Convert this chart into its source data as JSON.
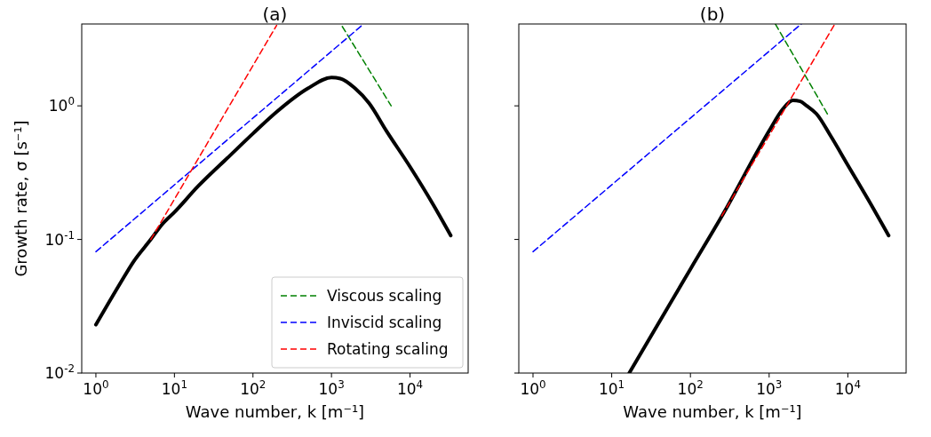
{
  "chart_data": [
    {
      "type": "line",
      "title": "(a)",
      "xlabel": "Wave number, k [m⁻¹]",
      "ylabel": "Growth rate, σ [s⁻¹]",
      "log": "xy",
      "xlim": [
        0.66,
        55000
      ],
      "ylim": [
        0.01,
        4.1
      ],
      "xticks": [
        {
          "value": 1,
          "label": "10$^{0}$"
        },
        {
          "value": 10,
          "label": "10$^{1}$"
        },
        {
          "value": 100,
          "label": "10$^{2}$"
        },
        {
          "value": 1000,
          "label": "10$^{3}$"
        },
        {
          "value": 10000,
          "label": "10$^{4}$"
        }
      ],
      "yticks": [
        {
          "value": 0.01,
          "label": "10$^{-2}$"
        },
        {
          "value": 0.1,
          "label": "10$^{-1}$"
        },
        {
          "value": 1,
          "label": "10$^{0}$"
        }
      ],
      "legend": "bottom right",
      "grid": false,
      "series": [
        {
          "color": "#000000",
          "x": [
            1,
            2,
            3,
            5,
            7,
            10,
            20,
            50,
            100,
            200,
            500,
            1000,
            1300,
            2000,
            3000,
            5000,
            10000,
            20000,
            33000
          ],
          "values": [
            0.023,
            0.046,
            0.068,
            0.1,
            0.13,
            0.16,
            0.25,
            0.42,
            0.62,
            0.9,
            1.35,
            1.63,
            1.6,
            1.35,
            1.05,
            0.65,
            0.35,
            0.18,
            0.107
          ]
        },
        {
          "name": "Viscous scaling",
          "color": "#008000",
          "line_style": "dashed",
          "x": [
            1370,
            5750
          ],
          "values": [
            3.93,
            1.0
          ]
        },
        {
          "name": "Inviscid scaling",
          "color": "#0000ff",
          "line_style": "dashed",
          "x": [
            1,
            2500
          ],
          "values": [
            0.081,
            4.05
          ]
        },
        {
          "name": "Rotating scaling",
          "color": "#ff0000",
          "line_style": "dashed",
          "x": [
            5,
            200
          ],
          "values": [
            0.1,
            4.0
          ]
        }
      ]
    },
    {
      "type": "line",
      "title": "(b)",
      "xlabel": "Wave number, k [m⁻¹]",
      "log": "xy",
      "xlim": [
        0.66,
        55000
      ],
      "ylim": [
        0.01,
        4.1
      ],
      "tick_labels": "x",
      "xticks": [
        {
          "value": 1,
          "label": "10$^{0}$"
        },
        {
          "value": 10,
          "label": "10$^{1}$"
        },
        {
          "value": 100,
          "label": "10$^{2}$"
        },
        {
          "value": 1000,
          "label": "10$^{3}$"
        },
        {
          "value": 10000,
          "label": "10$^{4}$"
        }
      ],
      "yticks": [
        {
          "value": 0.01,
          "label": null
        },
        {
          "value": 0.1,
          "label": null
        },
        {
          "value": 1,
          "label": null
        }
      ],
      "grid": false,
      "series": [
        {
          "color": "#000000",
          "x": [
            16.7,
            50,
            100,
            300,
            700,
            1000,
            1500,
            2000,
            2500,
            3000,
            4000,
            6000,
            10000,
            20000,
            33000
          ],
          "values": [
            0.01,
            0.03,
            0.06,
            0.18,
            0.45,
            0.65,
            0.95,
            1.1,
            1.08,
            1.0,
            0.87,
            0.6,
            0.36,
            0.18,
            0.107
          ]
        },
        {
          "color": "#008000",
          "line_style": "dashed",
          "x": [
            1200,
            5500
          ],
          "values": [
            4.1,
            0.87
          ]
        },
        {
          "color": "#0000ff",
          "line_style": "dashed",
          "x": [
            1,
            2560
          ],
          "values": [
            0.081,
            4.1
          ]
        },
        {
          "color": "#ff0000",
          "line_style": "dashed",
          "x": [
            250,
            6800
          ],
          "values": [
            0.15,
            4.08
          ]
        }
      ]
    }
  ]
}
